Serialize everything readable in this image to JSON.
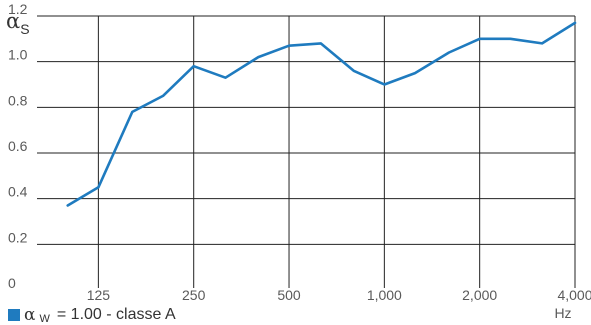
{
  "chart_data": {
    "type": "line",
    "ylabel": "αS",
    "ylabel_main": "α",
    "ylabel_sub": "S",
    "xlabel": "Hz",
    "ylim": [
      0,
      1.2
    ],
    "yticks": [
      0,
      0.2,
      0.4,
      0.6,
      0.8,
      1.0,
      1.2
    ],
    "ytick_labels": [
      "0",
      "0.2",
      "0.4",
      "0.6",
      "0.8",
      "1.0",
      "1.2"
    ],
    "x_scale": "log",
    "xlim": [
      80,
      4000
    ],
    "xticks": [
      125,
      250,
      500,
      1000,
      2000,
      4000
    ],
    "xtick_labels": [
      "125",
      "250",
      "500",
      "1,000",
      "2,000",
      "4,000"
    ],
    "grid": true,
    "colors": {
      "line": "#1f7bbf",
      "grid": "#222222",
      "text": "#5a5a5a"
    },
    "series": [
      {
        "name": "αW = 1.00 - classe A",
        "x": [
          100,
          125,
          160,
          200,
          250,
          315,
          400,
          500,
          630,
          800,
          1000,
          1250,
          1600,
          2000,
          2500,
          3150,
          4000
        ],
        "y": [
          0.37,
          0.45,
          0.78,
          0.85,
          0.98,
          0.93,
          1.02,
          1.07,
          1.08,
          0.96,
          0.9,
          0.95,
          1.04,
          1.1,
          1.1,
          1.08,
          1.17
        ]
      }
    ],
    "legend": {
      "symbol": "α",
      "sub": "W",
      "text": " = 1.00 - classe A",
      "placement": "bottom-left"
    }
  }
}
